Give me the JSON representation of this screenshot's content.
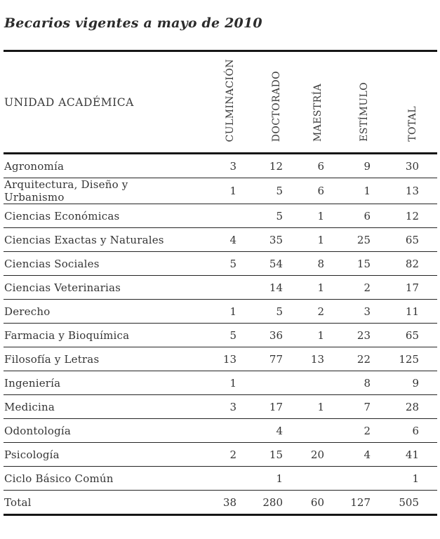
{
  "title": "Becarios vigentes a mayo de 2010",
  "table": {
    "row_header": "UNIDAD ACADÉMICA",
    "columns": [
      "CULMINACIÓN",
      "DOCTORADO",
      "MAESTRÍA",
      "ESTÍMULO",
      "TOTAL"
    ],
    "rows": [
      {
        "label": "Agronomía",
        "values": [
          "3",
          "12",
          "6",
          "9",
          "30"
        ]
      },
      {
        "label": "Arquitectura, Diseño y Urbanismo",
        "values": [
          "1",
          "5",
          "6",
          "1",
          "13"
        ]
      },
      {
        "label": "Ciencias Económicas",
        "values": [
          "",
          "5",
          "1",
          "6",
          "12"
        ]
      },
      {
        "label": "Ciencias Exactas y Naturales",
        "values": [
          "4",
          "35",
          "1",
          "25",
          "65"
        ]
      },
      {
        "label": "Ciencias Sociales",
        "values": [
          "5",
          "54",
          "8",
          "15",
          "82"
        ]
      },
      {
        "label": "Ciencias Veterinarias",
        "values": [
          "",
          "14",
          "1",
          "2",
          "17"
        ]
      },
      {
        "label": "Derecho",
        "values": [
          "1",
          "5",
          "2",
          "3",
          "11"
        ]
      },
      {
        "label": "Farmacia y Bioquímica",
        "values": [
          "5",
          "36",
          "1",
          "23",
          "65"
        ]
      },
      {
        "label": "Filosofía y Letras",
        "values": [
          "13",
          "77",
          "13",
          "22",
          "125"
        ]
      },
      {
        "label": "Ingeniería",
        "values": [
          "1",
          "",
          "",
          "8",
          "9"
        ]
      },
      {
        "label": "Medicina",
        "values": [
          "3",
          "17",
          "1",
          "7",
          "28"
        ]
      },
      {
        "label": "Odontología",
        "values": [
          "",
          "4",
          "",
          "2",
          "6"
        ]
      },
      {
        "label": "Psicología",
        "values": [
          "2",
          "15",
          "20",
          "4",
          "41"
        ]
      },
      {
        "label": "Ciclo Básico Común",
        "values": [
          "",
          "1",
          "",
          "",
          "1"
        ]
      },
      {
        "label": "Total",
        "values": [
          "38",
          "280",
          "60",
          "127",
          "505"
        ]
      }
    ]
  },
  "colors": {
    "background": "#ffffff",
    "text": "#343434",
    "rule_heavy": "#161616",
    "rule_light": "#242424"
  }
}
